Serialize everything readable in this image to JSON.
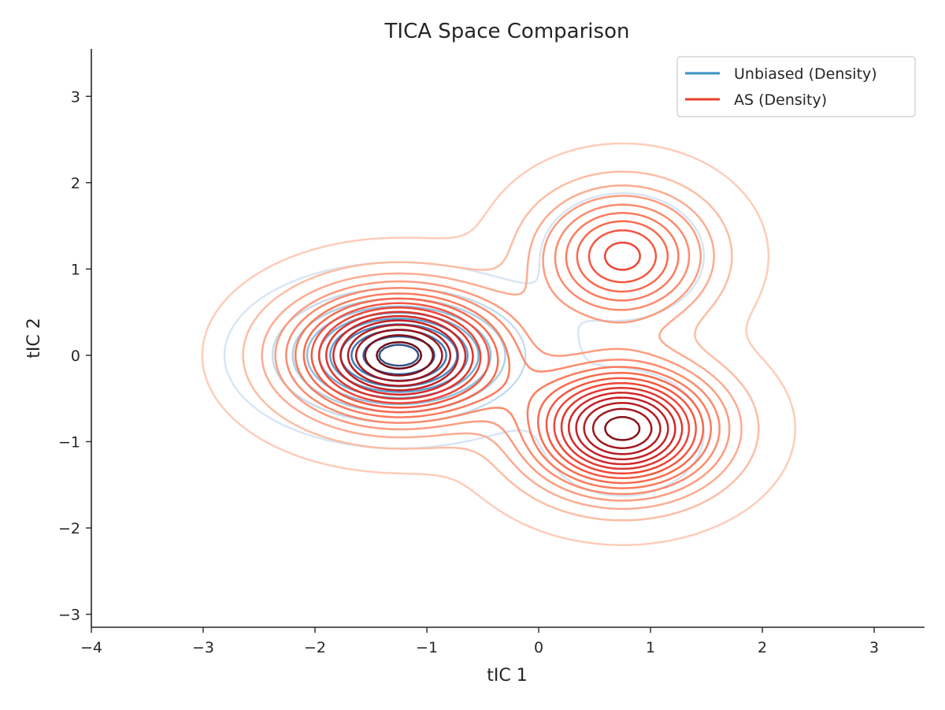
{
  "chart_data": {
    "type": "contour",
    "title": "TICA Space Comparison",
    "xlabel": "tIC 1",
    "ylabel": "tIC 2",
    "xlim": [
      -4.0,
      3.45
    ],
    "ylim": [
      -3.15,
      3.55
    ],
    "xticks": [
      -4,
      -3,
      -2,
      -1,
      0,
      1,
      2,
      3
    ],
    "yticks": [
      -3,
      -2,
      -1,
      0,
      1,
      2,
      3
    ],
    "xtick_labels": [
      "−4",
      "−3",
      "−2",
      "−1",
      "0",
      "1",
      "2",
      "3"
    ],
    "ytick_labels": [
      "−3",
      "−2",
      "−1",
      "0",
      "1",
      "2",
      "3"
    ],
    "grid": false,
    "legend_position": "upper-right",
    "series": [
      {
        "name": "Unbiased (Density)",
        "color": "#3a8fc4",
        "colormap": "Blues",
        "levels": 10,
        "components": [
          {
            "mean": [
              -1.25,
              0.0
            ],
            "sigma": [
              0.55,
              0.38
            ],
            "weight": 0.88
          },
          {
            "mean": [
              0.75,
              1.15
            ],
            "sigma": [
              0.42,
              0.42
            ],
            "weight": 0.06
          },
          {
            "mean": [
              0.75,
              -0.9
            ],
            "sigma": [
              0.42,
              0.42
            ],
            "weight": 0.06
          }
        ]
      },
      {
        "name": "AS (Density)",
        "color": "#e8402d",
        "colormap": "Reds",
        "levels": 16,
        "components": [
          {
            "mean": [
              -1.25,
              0.0
            ],
            "sigma": [
              0.62,
              0.48
            ],
            "weight": 0.44
          },
          {
            "mean": [
              0.75,
              1.15
            ],
            "sigma": [
              0.5,
              0.5
            ],
            "weight": 0.2
          },
          {
            "mean": [
              0.75,
              -0.85
            ],
            "sigma": [
              0.55,
              0.48
            ],
            "weight": 0.36
          }
        ]
      }
    ]
  }
}
